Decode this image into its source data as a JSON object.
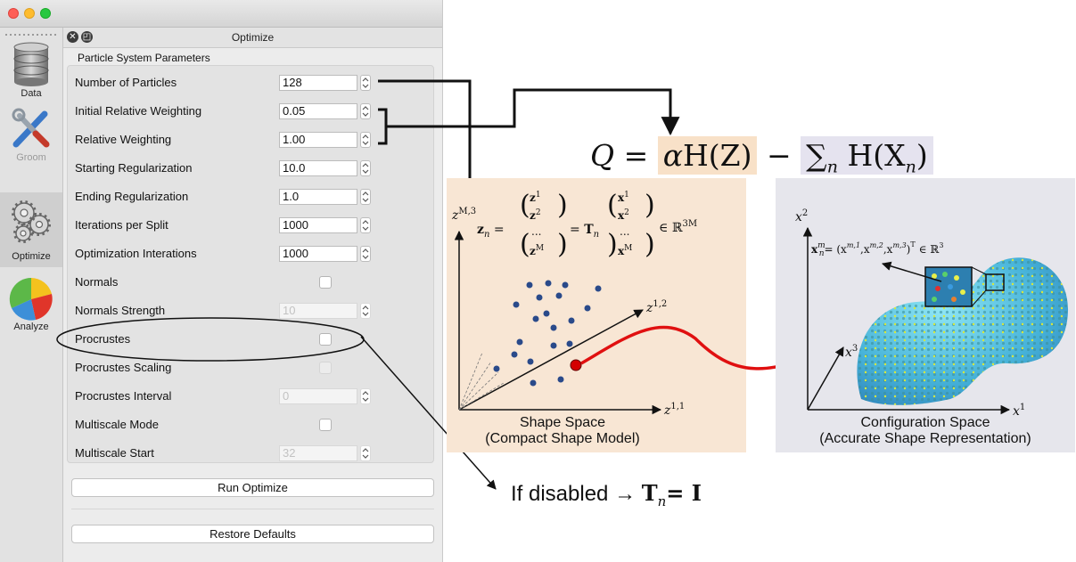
{
  "window": {
    "title": "Optimize",
    "sidebar": [
      {
        "label": "Data",
        "icon": "database-icon"
      },
      {
        "label": "Groom",
        "icon": "tools-icon"
      },
      {
        "label": "Optimize",
        "icon": "gears-icon"
      },
      {
        "label": "Analyze",
        "icon": "pie-chart-icon"
      }
    ],
    "group_title": "Particle System Parameters",
    "params": [
      {
        "label": "Number of Particles",
        "type": "spin",
        "value": "128",
        "enabled": true
      },
      {
        "label": "Initial Relative Weighting",
        "type": "spin",
        "value": "0.05",
        "enabled": true
      },
      {
        "label": "Relative Weighting",
        "type": "spin",
        "value": "1.00",
        "enabled": true
      },
      {
        "label": "Starting Regularization",
        "type": "spin",
        "value": "10.0",
        "enabled": true
      },
      {
        "label": "Ending Regularization",
        "type": "spin",
        "value": "1.0",
        "enabled": true
      },
      {
        "label": "Iterations per Split",
        "type": "spin",
        "value": "1000",
        "enabled": true
      },
      {
        "label": "Optimization Interations",
        "type": "spin",
        "value": "1000",
        "enabled": true
      },
      {
        "label": "Normals",
        "type": "check",
        "checked": false,
        "enabled": true
      },
      {
        "label": "Normals Strength",
        "type": "spin",
        "value": "10",
        "enabled": false
      },
      {
        "label": "Procrustes",
        "type": "check",
        "checked": false,
        "enabled": true
      },
      {
        "label": "Procrustes Scaling",
        "type": "check",
        "checked": false,
        "enabled": false
      },
      {
        "label": "Procrustes Interval",
        "type": "spin",
        "value": "0",
        "enabled": false
      },
      {
        "label": "Multiscale Mode",
        "type": "check",
        "checked": false,
        "enabled": true
      },
      {
        "label": "Multiscale Start",
        "type": "spin",
        "value": "32",
        "enabled": false
      }
    ],
    "run_button": "Run Optimize",
    "restore_button": "Restore Defaults"
  },
  "diagram": {
    "equation": {
      "q": "Q",
      "eq": "=",
      "alpha": "α",
      "hz": "H(Z)",
      "minus": "−",
      "sum": "∑",
      "sub_n": "n",
      "hx": "H(X",
      "hx_sub": "n",
      "hx_close": ")"
    },
    "shape_space": {
      "axis_top": "z",
      "axis_top_sup": "M,3",
      "axis_mid": "z",
      "axis_mid_sup": "1,2",
      "axis_right": "z",
      "axis_right_sup": "1,1",
      "z_lhs": "z",
      "z_sub": "n",
      "z_entries": [
        "z",
        "z",
        "...",
        "z"
      ],
      "z_entry_sups": [
        "1",
        "2",
        "",
        "M"
      ],
      "x_entries": [
        "x",
        "x",
        "...",
        "x"
      ],
      "x_entry_sups": [
        "1",
        "2",
        "",
        "M"
      ],
      "t_symbol": "T",
      "in_r": "∈ ℝ",
      "r_sup": "3M",
      "caption_line1": "Shape Space",
      "caption_line2": "(Compact Shape Model)"
    },
    "config_space": {
      "axis_x2": "x",
      "axis_x2_sup": "2",
      "axis_x3": "x",
      "axis_x3_sup": "3",
      "axis_x1": "x",
      "axis_x1_sup": "1",
      "formula": "x",
      "formula_sup": "m",
      "formula_sub": "n",
      "formula_rhs": "= (x",
      "formula_rhs_terms": [
        "m,1",
        "m,2",
        "m,3"
      ],
      "formula_tail": "∈ ℝ",
      "formula_tail_sup": "3",
      "caption_line1": "Configuration Space",
      "caption_line2": "(Accurate Shape Representation)"
    },
    "note_text": "If disabled →",
    "note_math": "T",
    "note_math_sub": "n",
    "note_math_rhs": "= I",
    "colors": {
      "shape_bg": "#f8e6d4",
      "config_bg": "#e6e6ec",
      "arrow_red": "#e01010",
      "dots": "#2a4a8a"
    }
  }
}
